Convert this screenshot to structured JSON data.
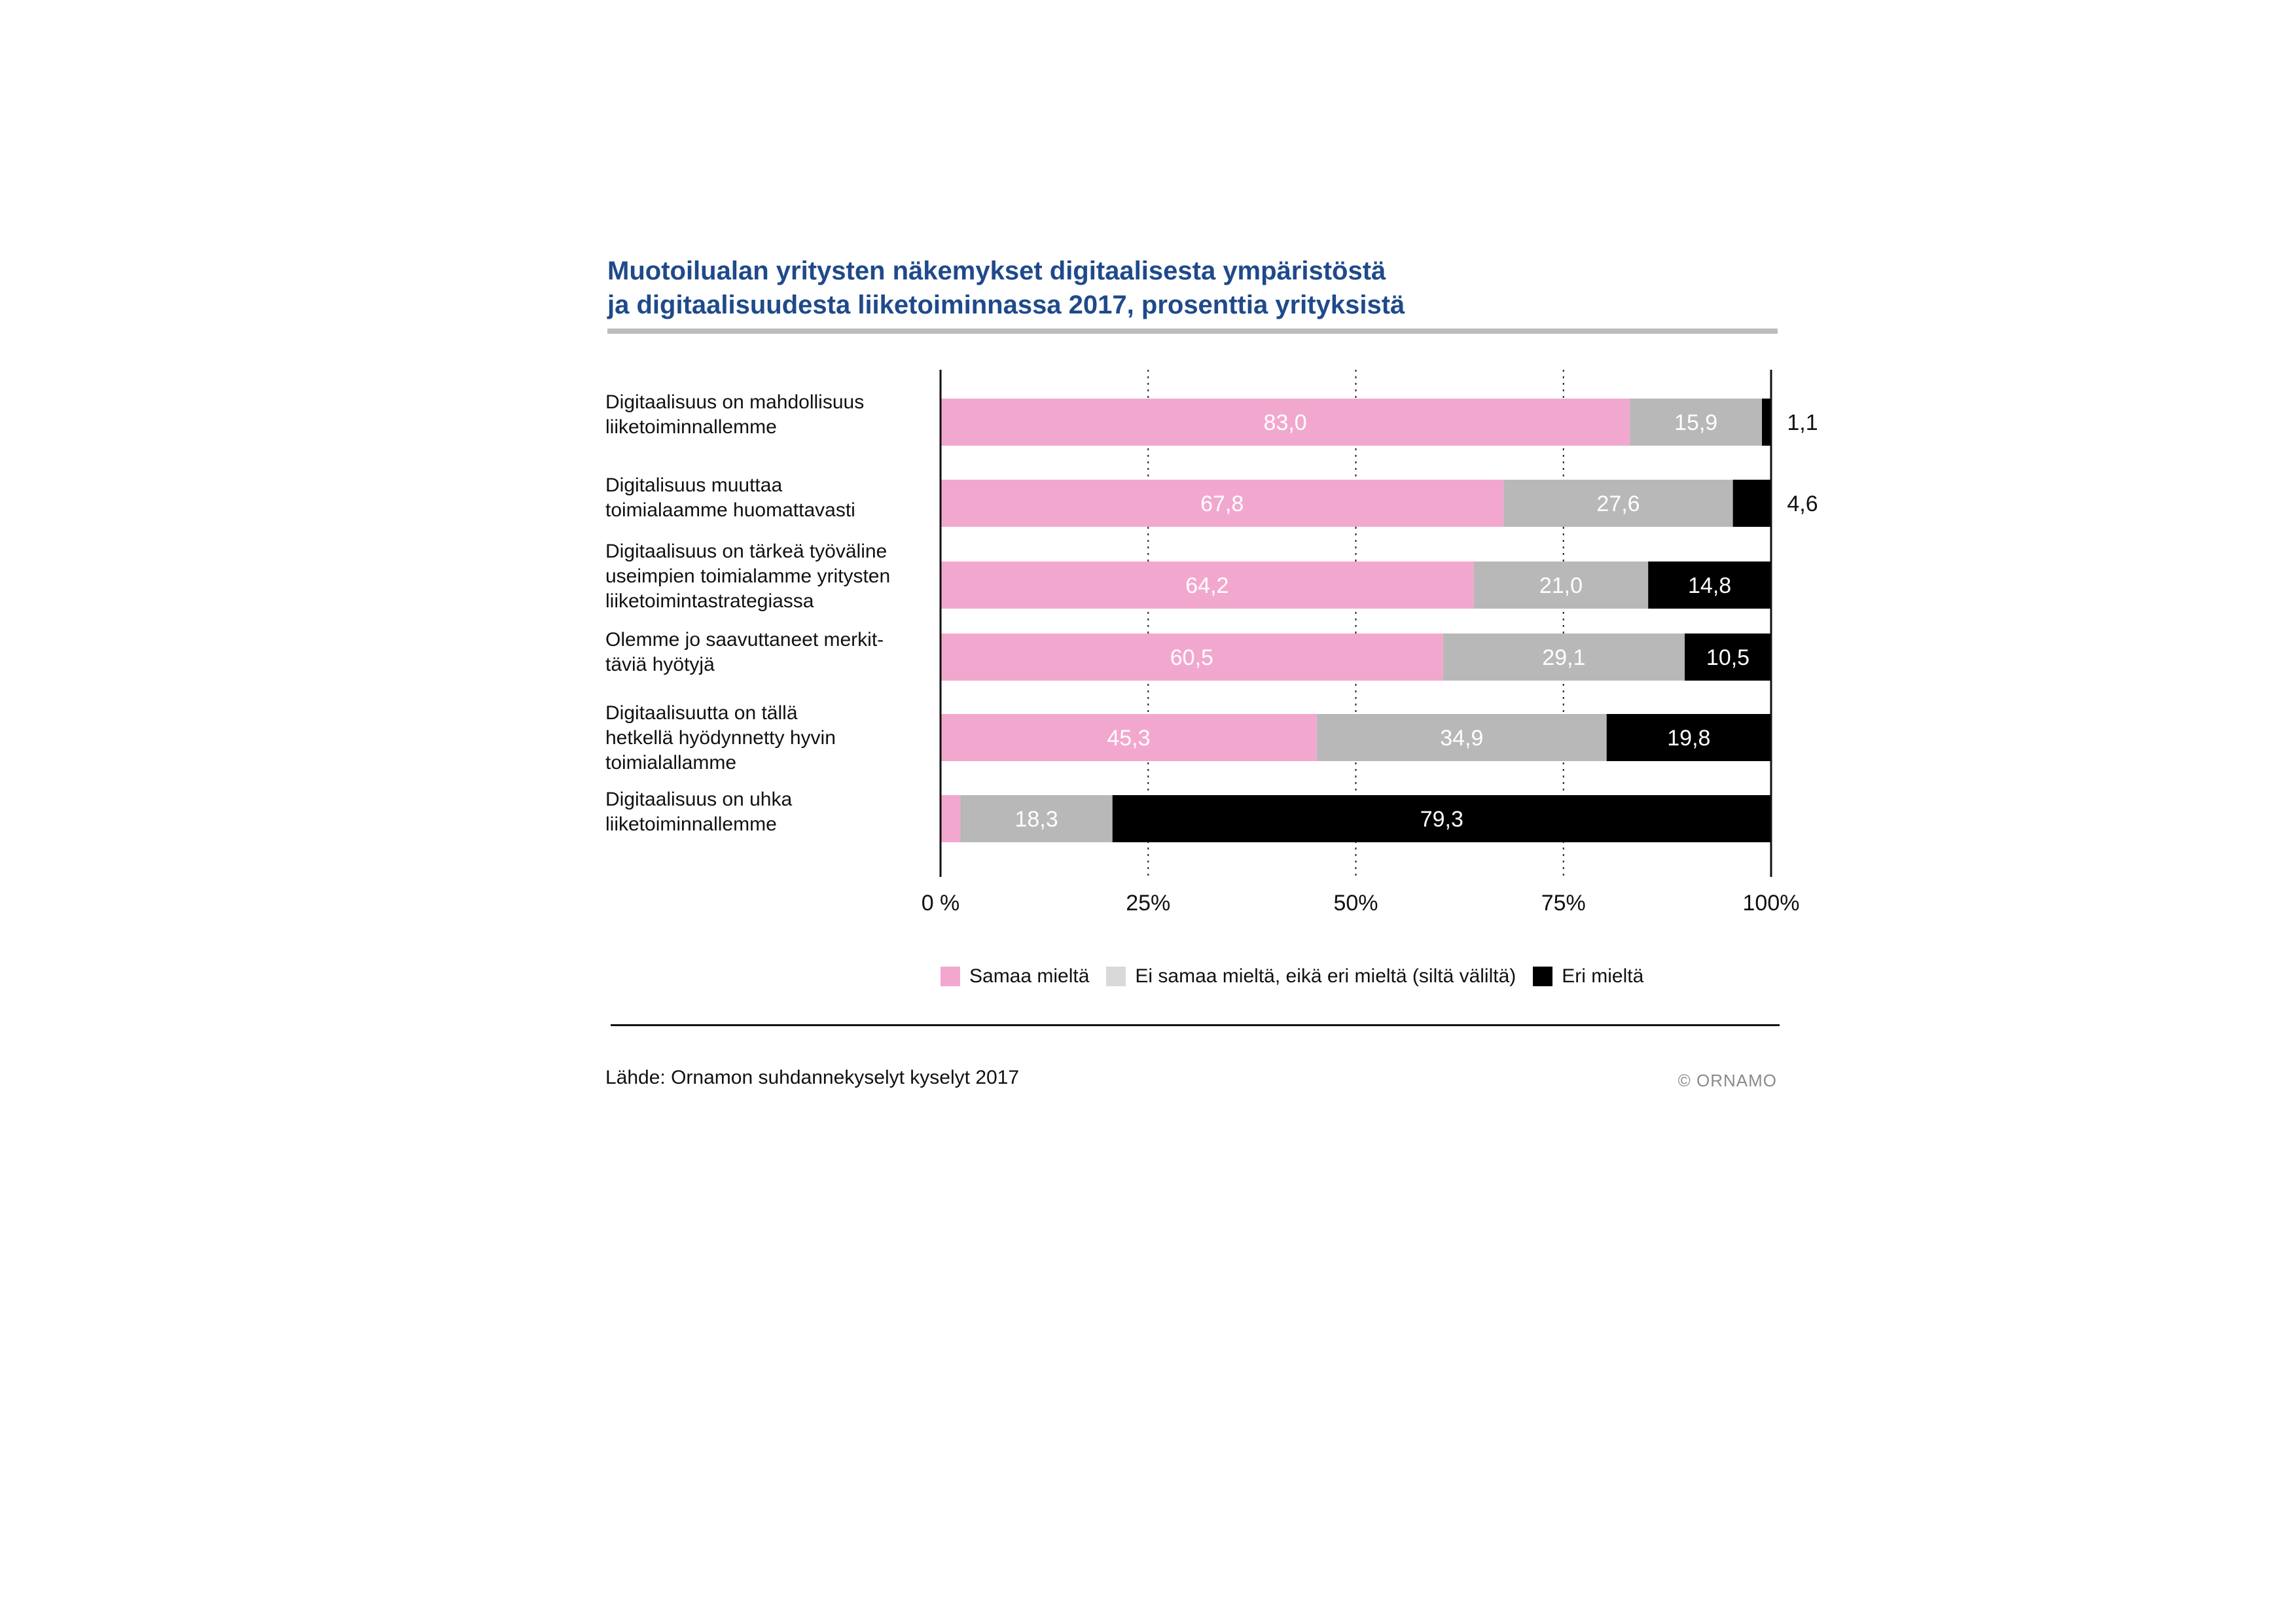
{
  "title_lines": [
    "Muotoilualan yritysten näkemykset digitaalisesta ympäristöstä",
    "ja digitaalisuudesta liiketoiminnassa 2017, prosenttia yrityksistä"
  ],
  "source": "Lähde: Ornamon suhdannekyselyt kyselyt 2017",
  "copyright": "© ORNAMO",
  "chart_data": {
    "type": "bar",
    "orientation": "horizontal",
    "stacked": true,
    "xlim": [
      0,
      100
    ],
    "grid": "dotted vertical at 25%, 50%, 75%",
    "legend_position": "bottom",
    "x_ticks": [
      {
        "value": 0,
        "label": "0 %"
      },
      {
        "value": 25,
        "label": "25%"
      },
      {
        "value": 50,
        "label": "50%"
      },
      {
        "value": 75,
        "label": "75%"
      },
      {
        "value": 100,
        "label": "100%"
      }
    ],
    "categories": [
      [
        "Digitaalisuus on mahdollisuus",
        "liiketoiminnallemme"
      ],
      [
        "Digitalisuus muuttaa",
        "toimialaamme huomattavasti"
      ],
      [
        "Digitaalisuus on tärkeä työväline",
        "useimpien toimialamme yritysten",
        "liiketoimintastrategiassa"
      ],
      [
        "Olemme jo saavuttaneet merkit-",
        "täviä hyötyjä"
      ],
      [
        "Digitaalisuutta on tällä",
        "hetkellä hyödynnetty hyvin",
        "toimialallamme"
      ],
      [
        "Digitaalisuus on uhka",
        "liiketoiminnallemme"
      ]
    ],
    "series": [
      {
        "name": "Samaa mieltä",
        "color": "#f2a8ce",
        "label_color": "#ffffff",
        "values": [
          83.0,
          67.8,
          64.2,
          60.5,
          45.3,
          2.4
        ],
        "labels": [
          "83,0",
          "67,8",
          "64,2",
          "60,5",
          "45,3",
          ""
        ]
      },
      {
        "name": "Ei samaa mieltä, eikä eri mieltä (siltä väliltä)",
        "color": "#b8b8b8",
        "legend_color": "#d9d9d9",
        "label_color": "#ffffff",
        "values": [
          15.9,
          27.6,
          21.0,
          29.1,
          34.9,
          18.3
        ],
        "labels": [
          "15,9",
          "27,6",
          "21,0",
          "29,1",
          "34,9",
          "18,3"
        ]
      },
      {
        "name": "Eri mieltä",
        "color": "#000000",
        "label_color": "#ffffff",
        "values": [
          1.1,
          4.6,
          14.8,
          10.5,
          19.8,
          79.3
        ],
        "labels": [
          "1,1",
          "4,6",
          "14,8",
          "10,5",
          "19,8",
          "79,3"
        ]
      }
    ]
  }
}
